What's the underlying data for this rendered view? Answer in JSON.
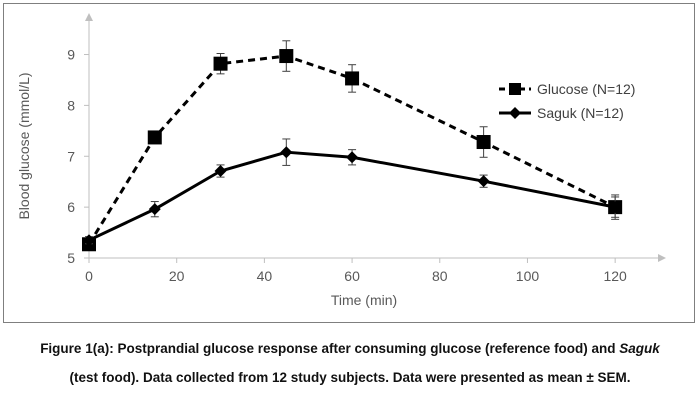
{
  "chart_data": {
    "type": "line",
    "xlabel": "Time (min)",
    "ylabel": "Blood glucose (mmol/L)",
    "xlim": [
      0,
      130
    ],
    "ylim": [
      5,
      9.6
    ],
    "x_ticks": [
      0,
      20,
      40,
      60,
      80,
      100,
      120
    ],
    "y_ticks": [
      5,
      6,
      7,
      8,
      9
    ],
    "grid": false,
    "legend_position": "right",
    "series": [
      {
        "name": "Glucose (N=12)",
        "x": [
          0,
          15,
          30,
          45,
          60,
          90,
          120
        ],
        "y": [
          5.27,
          7.37,
          8.82,
          8.97,
          8.53,
          7.28,
          6.0
        ],
        "err": [
          0.08,
          0.08,
          0.2,
          0.3,
          0.27,
          0.3,
          0.24
        ],
        "marker": "square",
        "line_style": "dashed",
        "color": "#000000"
      },
      {
        "name": "Saguk (N=12)",
        "x": [
          0,
          15,
          30,
          45,
          60,
          90,
          120
        ],
        "y": [
          5.35,
          5.96,
          6.71,
          7.08,
          6.98,
          6.51,
          6.0
        ],
        "err": [
          0.07,
          0.15,
          0.12,
          0.26,
          0.15,
          0.12,
          0.2
        ],
        "marker": "diamond",
        "line_style": "solid",
        "color": "#000000"
      }
    ],
    "axis_color": "#bfbfbf"
  },
  "caption": {
    "line1_prefix": "Figure 1(a): Postprandial glucose response after consuming glucose (reference food) and ",
    "line1_italic": "Saguk",
    "line2": "(test food).  Data collected from 12 study subjects. Data were presented as mean ± SEM."
  }
}
